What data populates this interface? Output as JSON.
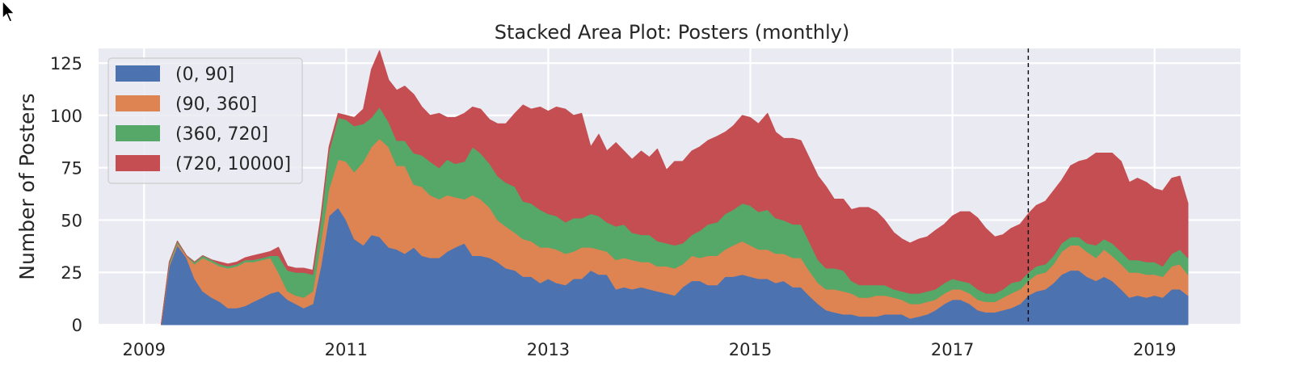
{
  "chart_data": {
    "type": "area",
    "stacked": true,
    "title": "Stacked Area Plot: Posters (monthly)",
    "xlabel": "",
    "ylabel": "Number of Posters",
    "xlim": [
      2008.55,
      2019.85
    ],
    "ylim": [
      0,
      132
    ],
    "xticks": [
      2009,
      2011,
      2013,
      2015,
      2017,
      2019
    ],
    "yticks": [
      0,
      25,
      50,
      75,
      100,
      125
    ],
    "grid": true,
    "legend_position": "top-left",
    "vline": {
      "x": 2017.75,
      "style": "dashed",
      "color": "#000000"
    },
    "colors": [
      "#4c72b0",
      "#dd8452",
      "#55a868",
      "#c44e52"
    ],
    "x": [
      2009.17,
      2009.25,
      2009.33,
      2009.42,
      2009.5,
      2009.58,
      2009.67,
      2009.75,
      2009.83,
      2009.92,
      2010.0,
      2010.08,
      2010.17,
      2010.25,
      2010.33,
      2010.42,
      2010.5,
      2010.58,
      2010.67,
      2010.75,
      2010.83,
      2010.92,
      2011.0,
      2011.08,
      2011.17,
      2011.25,
      2011.33,
      2011.42,
      2011.5,
      2011.58,
      2011.67,
      2011.75,
      2011.83,
      2011.92,
      2012.0,
      2012.08,
      2012.17,
      2012.25,
      2012.33,
      2012.42,
      2012.5,
      2012.58,
      2012.67,
      2012.75,
      2012.83,
      2012.92,
      2013.0,
      2013.08,
      2013.17,
      2013.25,
      2013.33,
      2013.42,
      2013.5,
      2013.58,
      2013.67,
      2013.75,
      2013.83,
      2013.92,
      2014.0,
      2014.08,
      2014.17,
      2014.25,
      2014.33,
      2014.42,
      2014.5,
      2014.58,
      2014.67,
      2014.75,
      2014.83,
      2014.92,
      2015.0,
      2015.08,
      2015.17,
      2015.25,
      2015.33,
      2015.42,
      2015.5,
      2015.58,
      2015.67,
      2015.75,
      2015.83,
      2015.92,
      2016.0,
      2016.08,
      2016.17,
      2016.25,
      2016.33,
      2016.42,
      2016.5,
      2016.58,
      2016.67,
      2016.75,
      2016.83,
      2016.92,
      2017.0,
      2017.08,
      2017.17,
      2017.25,
      2017.33,
      2017.42,
      2017.5,
      2017.58,
      2017.67,
      2017.75,
      2017.83,
      2017.92,
      2018.0,
      2018.08,
      2018.17,
      2018.25,
      2018.33,
      2018.42,
      2018.5,
      2018.58,
      2018.67,
      2018.75,
      2018.83,
      2018.92,
      2019.0,
      2019.08,
      2019.17,
      2019.25,
      2019.33
    ],
    "series": [
      {
        "name": "(0, 90]",
        "values": [
          0,
          28,
          38,
          32,
          22,
          16,
          13,
          11,
          8,
          8,
          9,
          11,
          13,
          15,
          16,
          12,
          10,
          8,
          10,
          28,
          52,
          56,
          50,
          41,
          38,
          43,
          42,
          37,
          36,
          34,
          37,
          33,
          32,
          32,
          35,
          37,
          39,
          33,
          33,
          32,
          30,
          27,
          26,
          23,
          23,
          20,
          22,
          20,
          19,
          22,
          22,
          26,
          24,
          24,
          17,
          18,
          17,
          18,
          17,
          16,
          15,
          14,
          18,
          21,
          21,
          19,
          19,
          23,
          23,
          24,
          23,
          22,
          22,
          20,
          21,
          18,
          18,
          14,
          10,
          7,
          6,
          5,
          5,
          4,
          4,
          4,
          5,
          5,
          5,
          3,
          4,
          5,
          7,
          10,
          12,
          12,
          10,
          7,
          6,
          6,
          7,
          8,
          10,
          14,
          16,
          17,
          20,
          24,
          26,
          26,
          23,
          21,
          23,
          21,
          17,
          13,
          14,
          13,
          14,
          13,
          17,
          17,
          14
        ]
      },
      {
        "name": "(90, 360]",
        "values": [
          0,
          1,
          1,
          1,
          7,
          16,
          17,
          17,
          19,
          20,
          21,
          19,
          18,
          17,
          9,
          4,
          4,
          5,
          6,
          12,
          13,
          23,
          28,
          32,
          40,
          42,
          47,
          48,
          40,
          42,
          30,
          33,
          30,
          28,
          27,
          24,
          21,
          29,
          27,
          24,
          20,
          20,
          18,
          18,
          17,
          17,
          15,
          16,
          15,
          13,
          15,
          11,
          12,
          11,
          14,
          14,
          14,
          12,
          13,
          12,
          13,
          13,
          11,
          12,
          11,
          14,
          14,
          13,
          15,
          16,
          15,
          14,
          14,
          14,
          13,
          14,
          14,
          12,
          10,
          10,
          11,
          11,
          10,
          9,
          9,
          10,
          9,
          8,
          7,
          7,
          6,
          6,
          5,
          5,
          5,
          5,
          5,
          5,
          5,
          5,
          6,
          7,
          7,
          7,
          8,
          8,
          9,
          11,
          12,
          12,
          12,
          11,
          13,
          12,
          12,
          12,
          11,
          11,
          10,
          10,
          11,
          12,
          10
        ]
      },
      {
        "name": "(360, 720]",
        "values": [
          0,
          1,
          1,
          0,
          1,
          1,
          1,
          1,
          1,
          1,
          1,
          1,
          1,
          1,
          8,
          10,
          11,
          12,
          8,
          10,
          18,
          20,
          20,
          22,
          18,
          14,
          15,
          12,
          12,
          12,
          15,
          15,
          16,
          15,
          17,
          16,
          18,
          23,
          22,
          21,
          21,
          21,
          22,
          18,
          18,
          18,
          16,
          16,
          15,
          16,
          14,
          16,
          16,
          14,
          16,
          16,
          13,
          13,
          13,
          12,
          11,
          11,
          10,
          10,
          13,
          15,
          16,
          17,
          17,
          18,
          19,
          18,
          19,
          17,
          16,
          16,
          16,
          14,
          11,
          10,
          10,
          10,
          6,
          6,
          6,
          5,
          5,
          4,
          4,
          5,
          5,
          5,
          5,
          5,
          5,
          4,
          5,
          5,
          4,
          4,
          4,
          5,
          4,
          4,
          4,
          4,
          4,
          4,
          4,
          4,
          4,
          6,
          5,
          6,
          6,
          6,
          6,
          6,
          6,
          5,
          6,
          7,
          8
        ]
      },
      {
        "name": "(720, 10000]",
        "values": [
          0,
          0,
          0,
          0,
          0,
          0,
          0,
          1,
          1,
          1,
          1,
          2,
          2,
          2,
          4,
          2,
          2,
          2,
          2,
          2,
          2,
          2,
          2,
          4,
          7,
          23,
          27,
          20,
          24,
          26,
          28,
          23,
          22,
          26,
          20,
          22,
          23,
          19,
          21,
          21,
          25,
          28,
          35,
          46,
          45,
          49,
          49,
          52,
          54,
          49,
          50,
          32,
          39,
          34,
          40,
          35,
          35,
          40,
          37,
          44,
          35,
          40,
          39,
          40,
          40,
          40,
          41,
          39,
          40,
          42,
          42,
          42,
          46,
          41,
          39,
          41,
          40,
          40,
          40,
          39,
          33,
          34,
          34,
          37,
          37,
          35,
          31,
          27,
          25,
          24,
          26,
          26,
          28,
          28,
          30,
          33,
          34,
          34,
          31,
          27,
          26,
          26,
          27,
          28,
          29,
          30,
          31,
          30,
          34,
          36,
          40,
          44,
          41,
          43,
          43,
          37,
          39,
          38,
          35,
          36,
          36,
          35,
          26
        ]
      }
    ]
  }
}
